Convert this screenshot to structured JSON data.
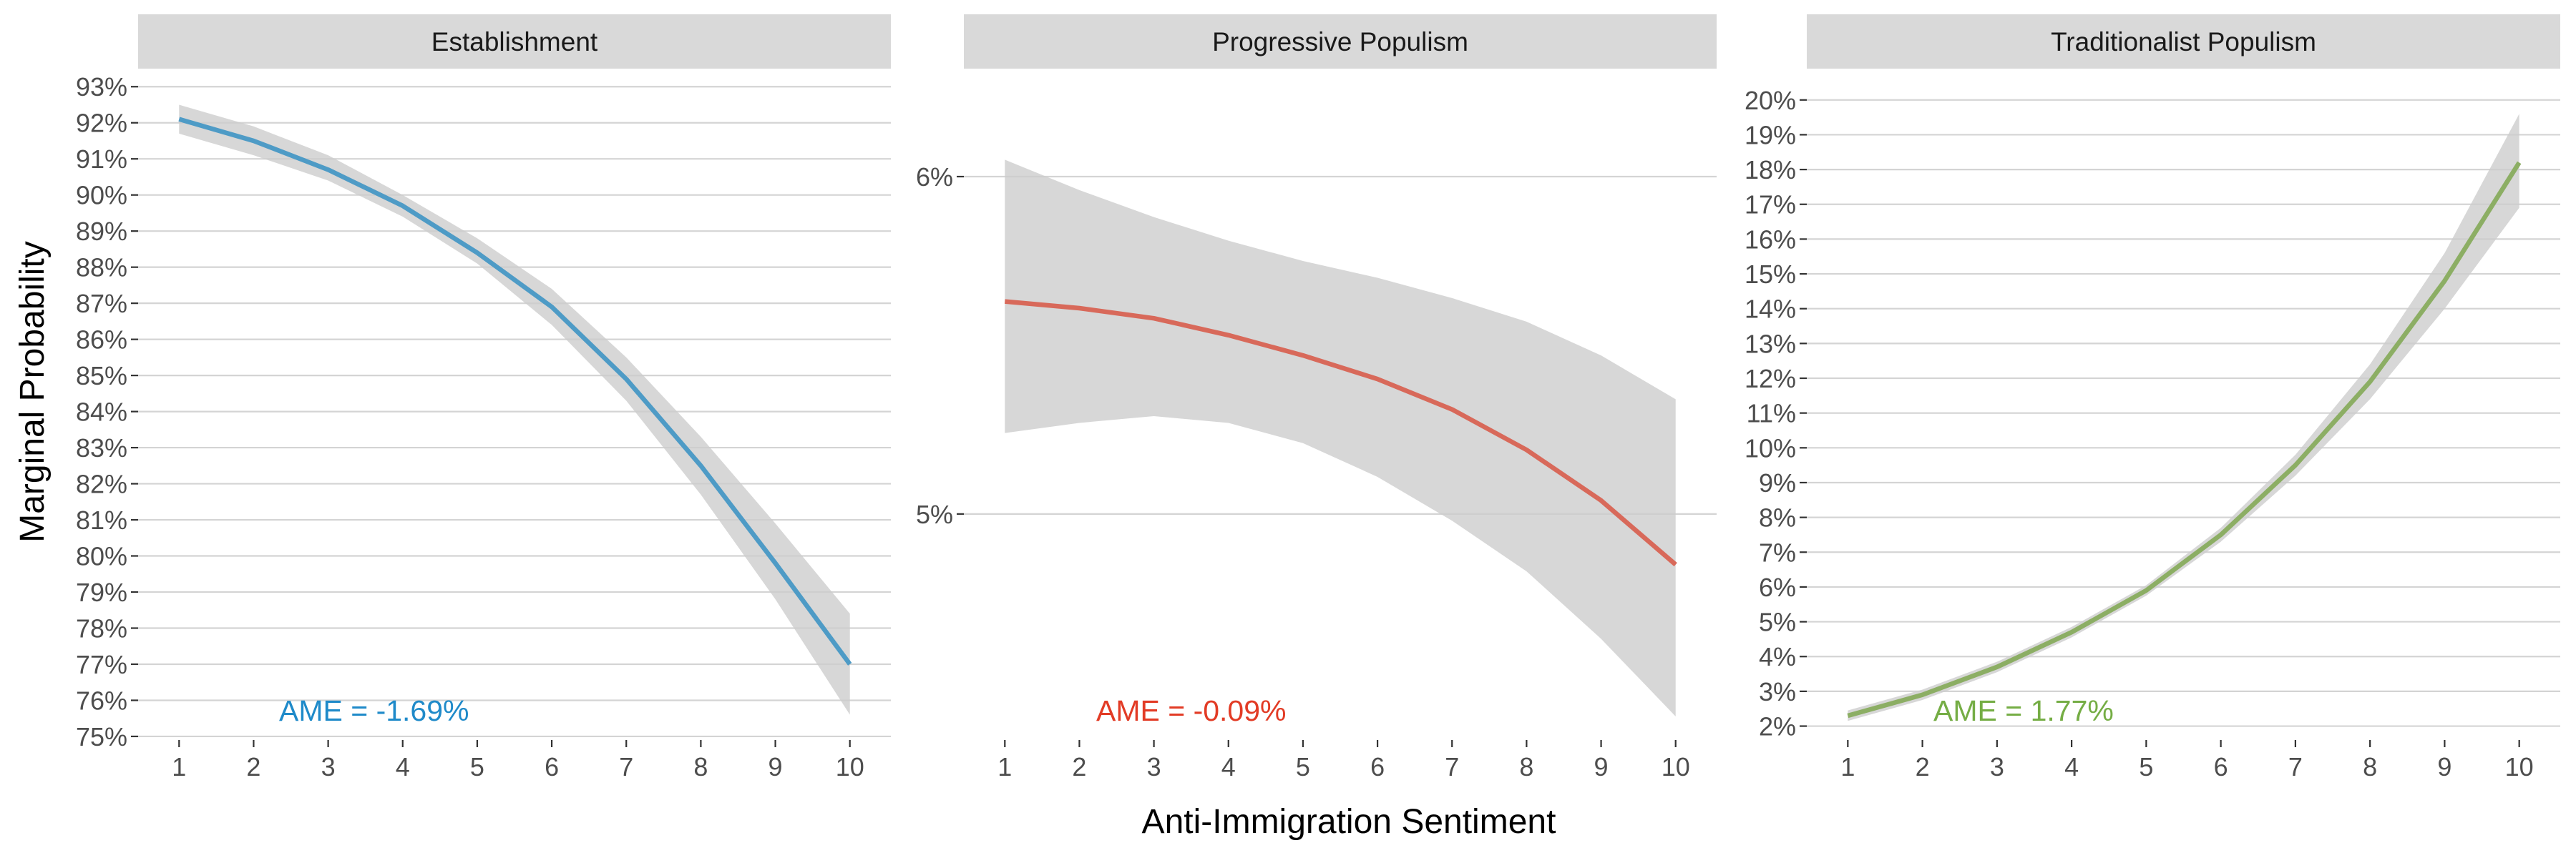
{
  "figure": {
    "xlabel": "Anti-Immigration Sentiment",
    "ylabel": "Marginal Probability"
  },
  "chart_data": [
    {
      "type": "line",
      "title": "Establishment",
      "color": "#4e9bc6",
      "ame_label": "AME = -1.69%",
      "ame_color": "#1f8ac9",
      "x": [
        1,
        2,
        3,
        4,
        5,
        6,
        7,
        8,
        9,
        10
      ],
      "xticks": [
        "1",
        "2",
        "3",
        "4",
        "5",
        "6",
        "7",
        "8",
        "9",
        "10"
      ],
      "xlim": [
        0.45,
        10.55
      ],
      "ylim": [
        74.9,
        93.5
      ],
      "yticks": [
        75,
        76,
        77,
        78,
        79,
        80,
        81,
        82,
        83,
        84,
        85,
        86,
        87,
        88,
        89,
        90,
        91,
        92,
        93
      ],
      "ytick_labels": [
        "75%",
        "76%",
        "77%",
        "78%",
        "79%",
        "80%",
        "81%",
        "82%",
        "83%",
        "84%",
        "85%",
        "86%",
        "87%",
        "88%",
        "89%",
        "90%",
        "91%",
        "92%",
        "93%"
      ],
      "series": [
        {
          "y": [
            92.1,
            91.5,
            90.7,
            89.7,
            88.4,
            86.9,
            84.9,
            82.5,
            79.8,
            77.0
          ],
          "ci_lower": [
            91.7,
            91.1,
            90.4,
            89.4,
            88.1,
            86.4,
            84.3,
            81.7,
            78.8,
            75.6
          ],
          "ci_upper": [
            92.5,
            91.9,
            91.1,
            90.0,
            88.8,
            87.4,
            85.5,
            83.3,
            80.9,
            78.4
          ]
        }
      ]
    },
    {
      "type": "line",
      "title": "Progressive Populism",
      "color": "#d8695a",
      "ame_label": "AME = -0.09%",
      "ame_color": "#e23b25",
      "x": [
        1,
        2,
        3,
        4,
        5,
        6,
        7,
        8,
        9,
        10
      ],
      "xticks": [
        "1",
        "2",
        "3",
        "4",
        "5",
        "6",
        "7",
        "8",
        "9",
        "10"
      ],
      "xlim": [
        0.45,
        10.55
      ],
      "ylim": [
        4.33,
        6.32
      ],
      "yticks": [
        5,
        6
      ],
      "ytick_labels": [
        "5%",
        "6%"
      ],
      "series": [
        {
          "y": [
            5.63,
            5.61,
            5.58,
            5.53,
            5.47,
            5.4,
            5.31,
            5.19,
            5.04,
            4.85
          ],
          "ci_lower": [
            5.24,
            5.27,
            5.29,
            5.27,
            5.21,
            5.11,
            4.98,
            4.83,
            4.63,
            4.4
          ],
          "ci_upper": [
            6.05,
            5.96,
            5.88,
            5.81,
            5.75,
            5.7,
            5.64,
            5.57,
            5.47,
            5.34
          ]
        }
      ]
    },
    {
      "type": "line",
      "title": "Traditionalist Populism",
      "color": "#8cae64",
      "ame_label": "AME = 1.77%",
      "ame_color": "#75ad45",
      "x": [
        1,
        2,
        3,
        4,
        5,
        6,
        7,
        8,
        9,
        10
      ],
      "xticks": [
        "1",
        "2",
        "3",
        "4",
        "5",
        "6",
        "7",
        "8",
        "9",
        "10"
      ],
      "xlim": [
        0.45,
        10.55
      ],
      "ylim": [
        1.6,
        20.9
      ],
      "yticks": [
        2,
        3,
        4,
        5,
        6,
        7,
        8,
        9,
        10,
        11,
        12,
        13,
        14,
        15,
        16,
        17,
        18,
        19,
        20
      ],
      "ytick_labels": [
        "2%",
        "3%",
        "4%",
        "5%",
        "6%",
        "7%",
        "8%",
        "9%",
        "10%",
        "11%",
        "12%",
        "13%",
        "14%",
        "15%",
        "16%",
        "17%",
        "18%",
        "19%",
        "20%"
      ],
      "series": [
        {
          "y": [
            2.3,
            2.9,
            3.7,
            4.7,
            5.9,
            7.5,
            9.5,
            11.9,
            14.8,
            18.2
          ],
          "ci_lower": [
            2.15,
            2.75,
            3.55,
            4.55,
            5.75,
            7.3,
            9.2,
            11.4,
            14.0,
            16.9
          ],
          "ci_upper": [
            2.45,
            3.05,
            3.85,
            4.85,
            6.05,
            7.7,
            9.8,
            12.4,
            15.6,
            19.6
          ]
        }
      ]
    }
  ]
}
